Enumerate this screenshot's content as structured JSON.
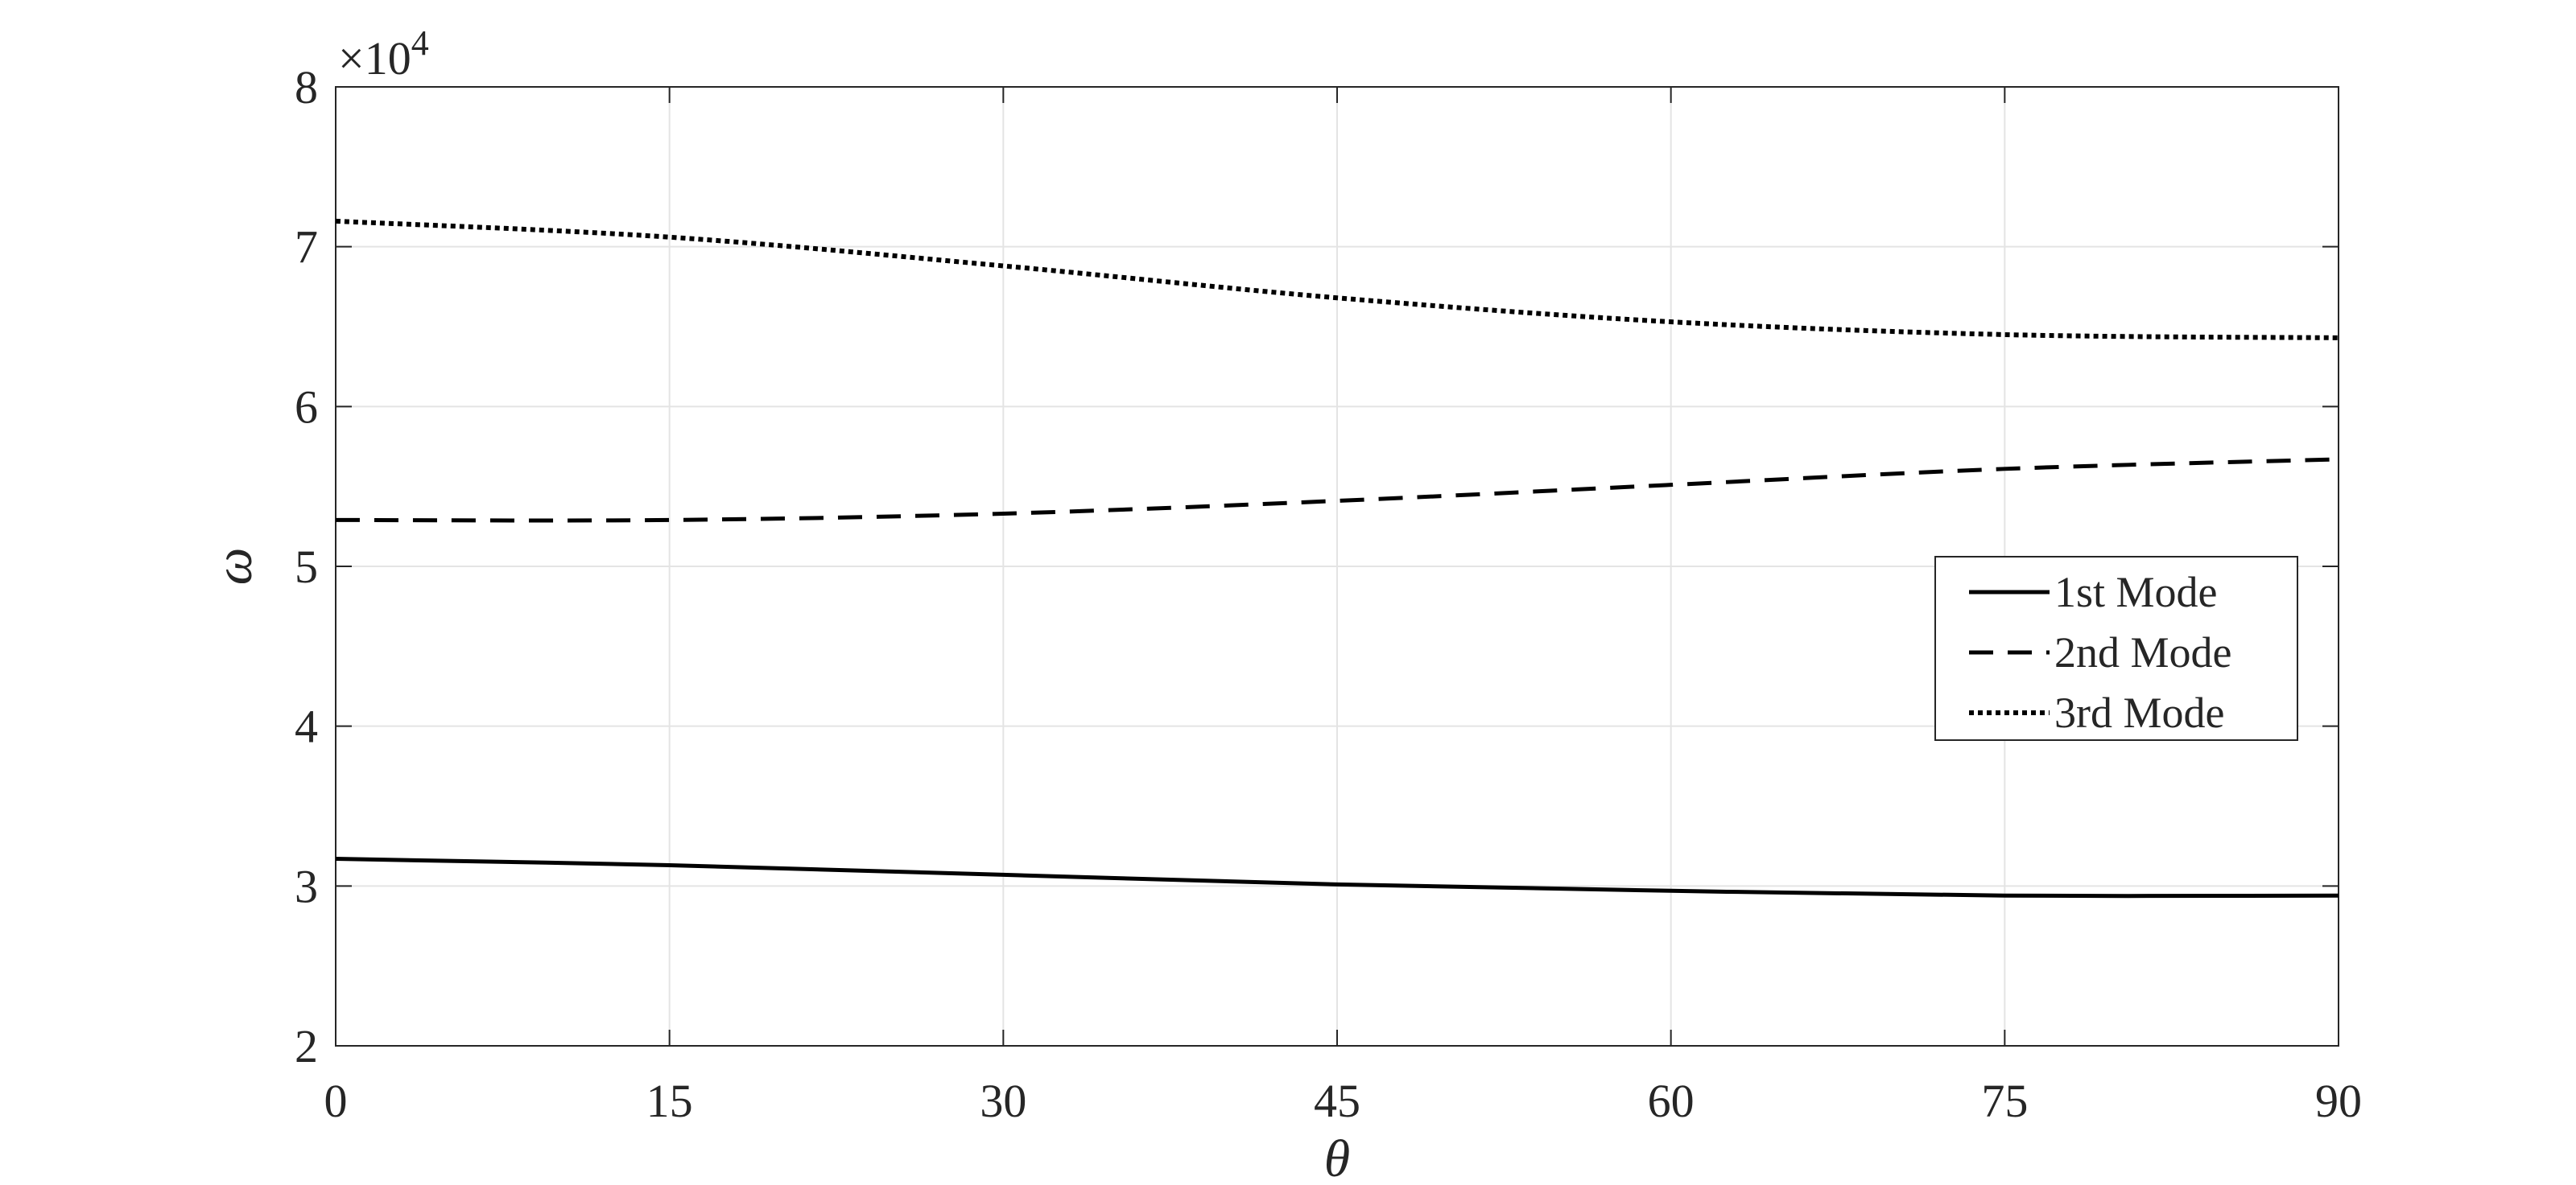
{
  "chart_data": {
    "type": "line",
    "xlabel": "θ",
    "ylabel": "ω",
    "y_multiplier": "×10^4",
    "y_multiplier_base": "×10",
    "y_multiplier_exp": "4",
    "x": [
      0,
      15,
      30,
      45,
      60,
      75,
      90
    ],
    "xticks": [
      "0",
      "15",
      "30",
      "45",
      "60",
      "75",
      "90"
    ],
    "yticks": [
      "2",
      "3",
      "4",
      "5",
      "6",
      "7",
      "8"
    ],
    "xlim": [
      0,
      90
    ],
    "ylim": [
      2,
      8
    ],
    "grid": true,
    "legend_position": "right",
    "series": [
      {
        "name": "1st Mode",
        "style": "solid",
        "color": "#000000",
        "values": [
          3.17,
          3.13,
          3.07,
          3.01,
          2.97,
          2.94,
          2.94
        ]
      },
      {
        "name": "2nd Mode",
        "style": "dashed",
        "color": "#000000",
        "values": [
          5.29,
          5.29,
          5.33,
          5.41,
          5.51,
          5.61,
          5.67
        ]
      },
      {
        "name": "3rd Mode",
        "style": "dotted",
        "color": "#000000",
        "values": [
          7.16,
          7.06,
          6.88,
          6.68,
          6.53,
          6.45,
          6.43
        ]
      }
    ]
  }
}
